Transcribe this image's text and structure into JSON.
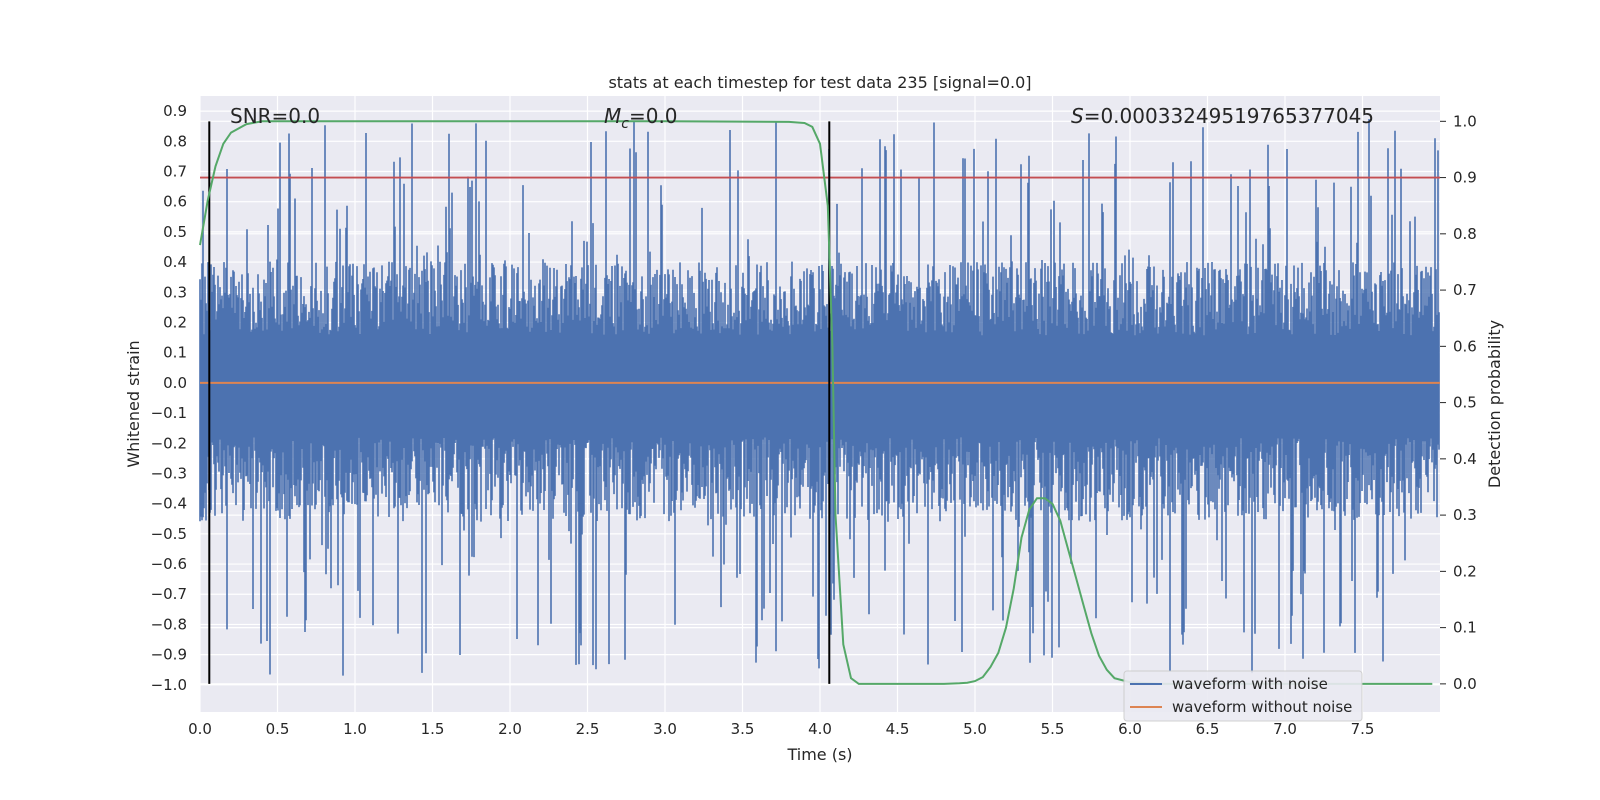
{
  "chart_data": {
    "type": "line",
    "title": "stats at each timestep for test data 235 [signal=0.0]",
    "xlabel": "Time (s)",
    "ylabel_left": "Whitened strain",
    "ylabel_right": "Detection probability",
    "xlim": [
      0.0,
      8.0
    ],
    "ylim_left": [
      -1.09,
      0.95
    ],
    "ylim_right": [
      -0.05,
      1.045
    ],
    "x_ticks": [
      "0.0",
      "0.5",
      "1.0",
      "1.5",
      "2.0",
      "2.5",
      "3.0",
      "3.5",
      "4.0",
      "4.5",
      "5.0",
      "5.5",
      "6.0",
      "6.5",
      "7.0",
      "7.5"
    ],
    "y_left_ticks": [
      "0.9",
      "0.8",
      "0.7",
      "0.6",
      "0.5",
      "0.4",
      "0.3",
      "0.2",
      "0.1",
      "0.0",
      "−0.1",
      "−0.2",
      "−0.3",
      "−0.4",
      "−0.5",
      "−0.6",
      "−0.7",
      "−0.8",
      "−0.9",
      "−1.0"
    ],
    "y_right_ticks": [
      "1.0",
      "0.9",
      "0.8",
      "0.7",
      "0.6",
      "0.5",
      "0.4",
      "0.3",
      "0.2",
      "0.1",
      "0.0"
    ],
    "annotations": {
      "snr_label": "SNR=0.0",
      "mc_symbol": "M",
      "mc_subscript": "c",
      "mc_value": "=0.0",
      "s_symbol": "S",
      "s_value": "=0.00033249519765377045"
    },
    "threshold_right": 0.9,
    "vertical_markers_x": [
      0.06,
      4.06
    ],
    "series": [
      {
        "name": "waveform with noise",
        "color": "#4c72b0",
        "envelope_upper_typical": 0.35,
        "envelope_lower_typical": -0.4,
        "peak_max": 0.88,
        "peak_min": -0.97
      },
      {
        "name": "waveform without noise",
        "color": "#dd8452",
        "values": [
          0.0,
          0.0
        ]
      },
      {
        "name": "detection probability",
        "color": "#55a868",
        "axis": "right",
        "x": [
          0.0,
          0.05,
          0.1,
          0.15,
          0.2,
          0.3,
          0.4,
          0.6,
          1.0,
          2.0,
          3.0,
          3.8,
          3.9,
          3.95,
          4.0,
          4.05,
          4.08,
          4.1,
          4.15,
          4.2,
          4.25,
          4.5,
          4.8,
          4.9,
          4.95,
          5.0,
          5.05,
          5.1,
          5.15,
          5.2,
          5.25,
          5.3,
          5.35,
          5.4,
          5.45,
          5.5,
          5.55,
          5.6,
          5.65,
          5.7,
          5.75,
          5.8,
          5.85,
          5.9,
          6.0,
          6.2,
          7.0,
          7.95
        ],
        "values": [
          0.78,
          0.86,
          0.92,
          0.96,
          0.98,
          0.995,
          1.0,
          1.0,
          1.0,
          1.0,
          1.0,
          0.999,
          0.997,
          0.99,
          0.96,
          0.85,
          0.6,
          0.3,
          0.07,
          0.01,
          0.0,
          0.0,
          0.0,
          0.001,
          0.002,
          0.005,
          0.012,
          0.03,
          0.055,
          0.1,
          0.17,
          0.26,
          0.31,
          0.33,
          0.33,
          0.32,
          0.29,
          0.24,
          0.19,
          0.14,
          0.09,
          0.05,
          0.025,
          0.01,
          0.003,
          0.0,
          0.0,
          0.0
        ]
      }
    ],
    "legend": {
      "position": "lower-right",
      "entries": [
        "waveform with noise",
        "waveform without noise"
      ]
    },
    "colors": {
      "threshold": "#c44e52",
      "markers": "#000000",
      "background": "#eaeaf2",
      "grid": "#ffffff"
    }
  }
}
